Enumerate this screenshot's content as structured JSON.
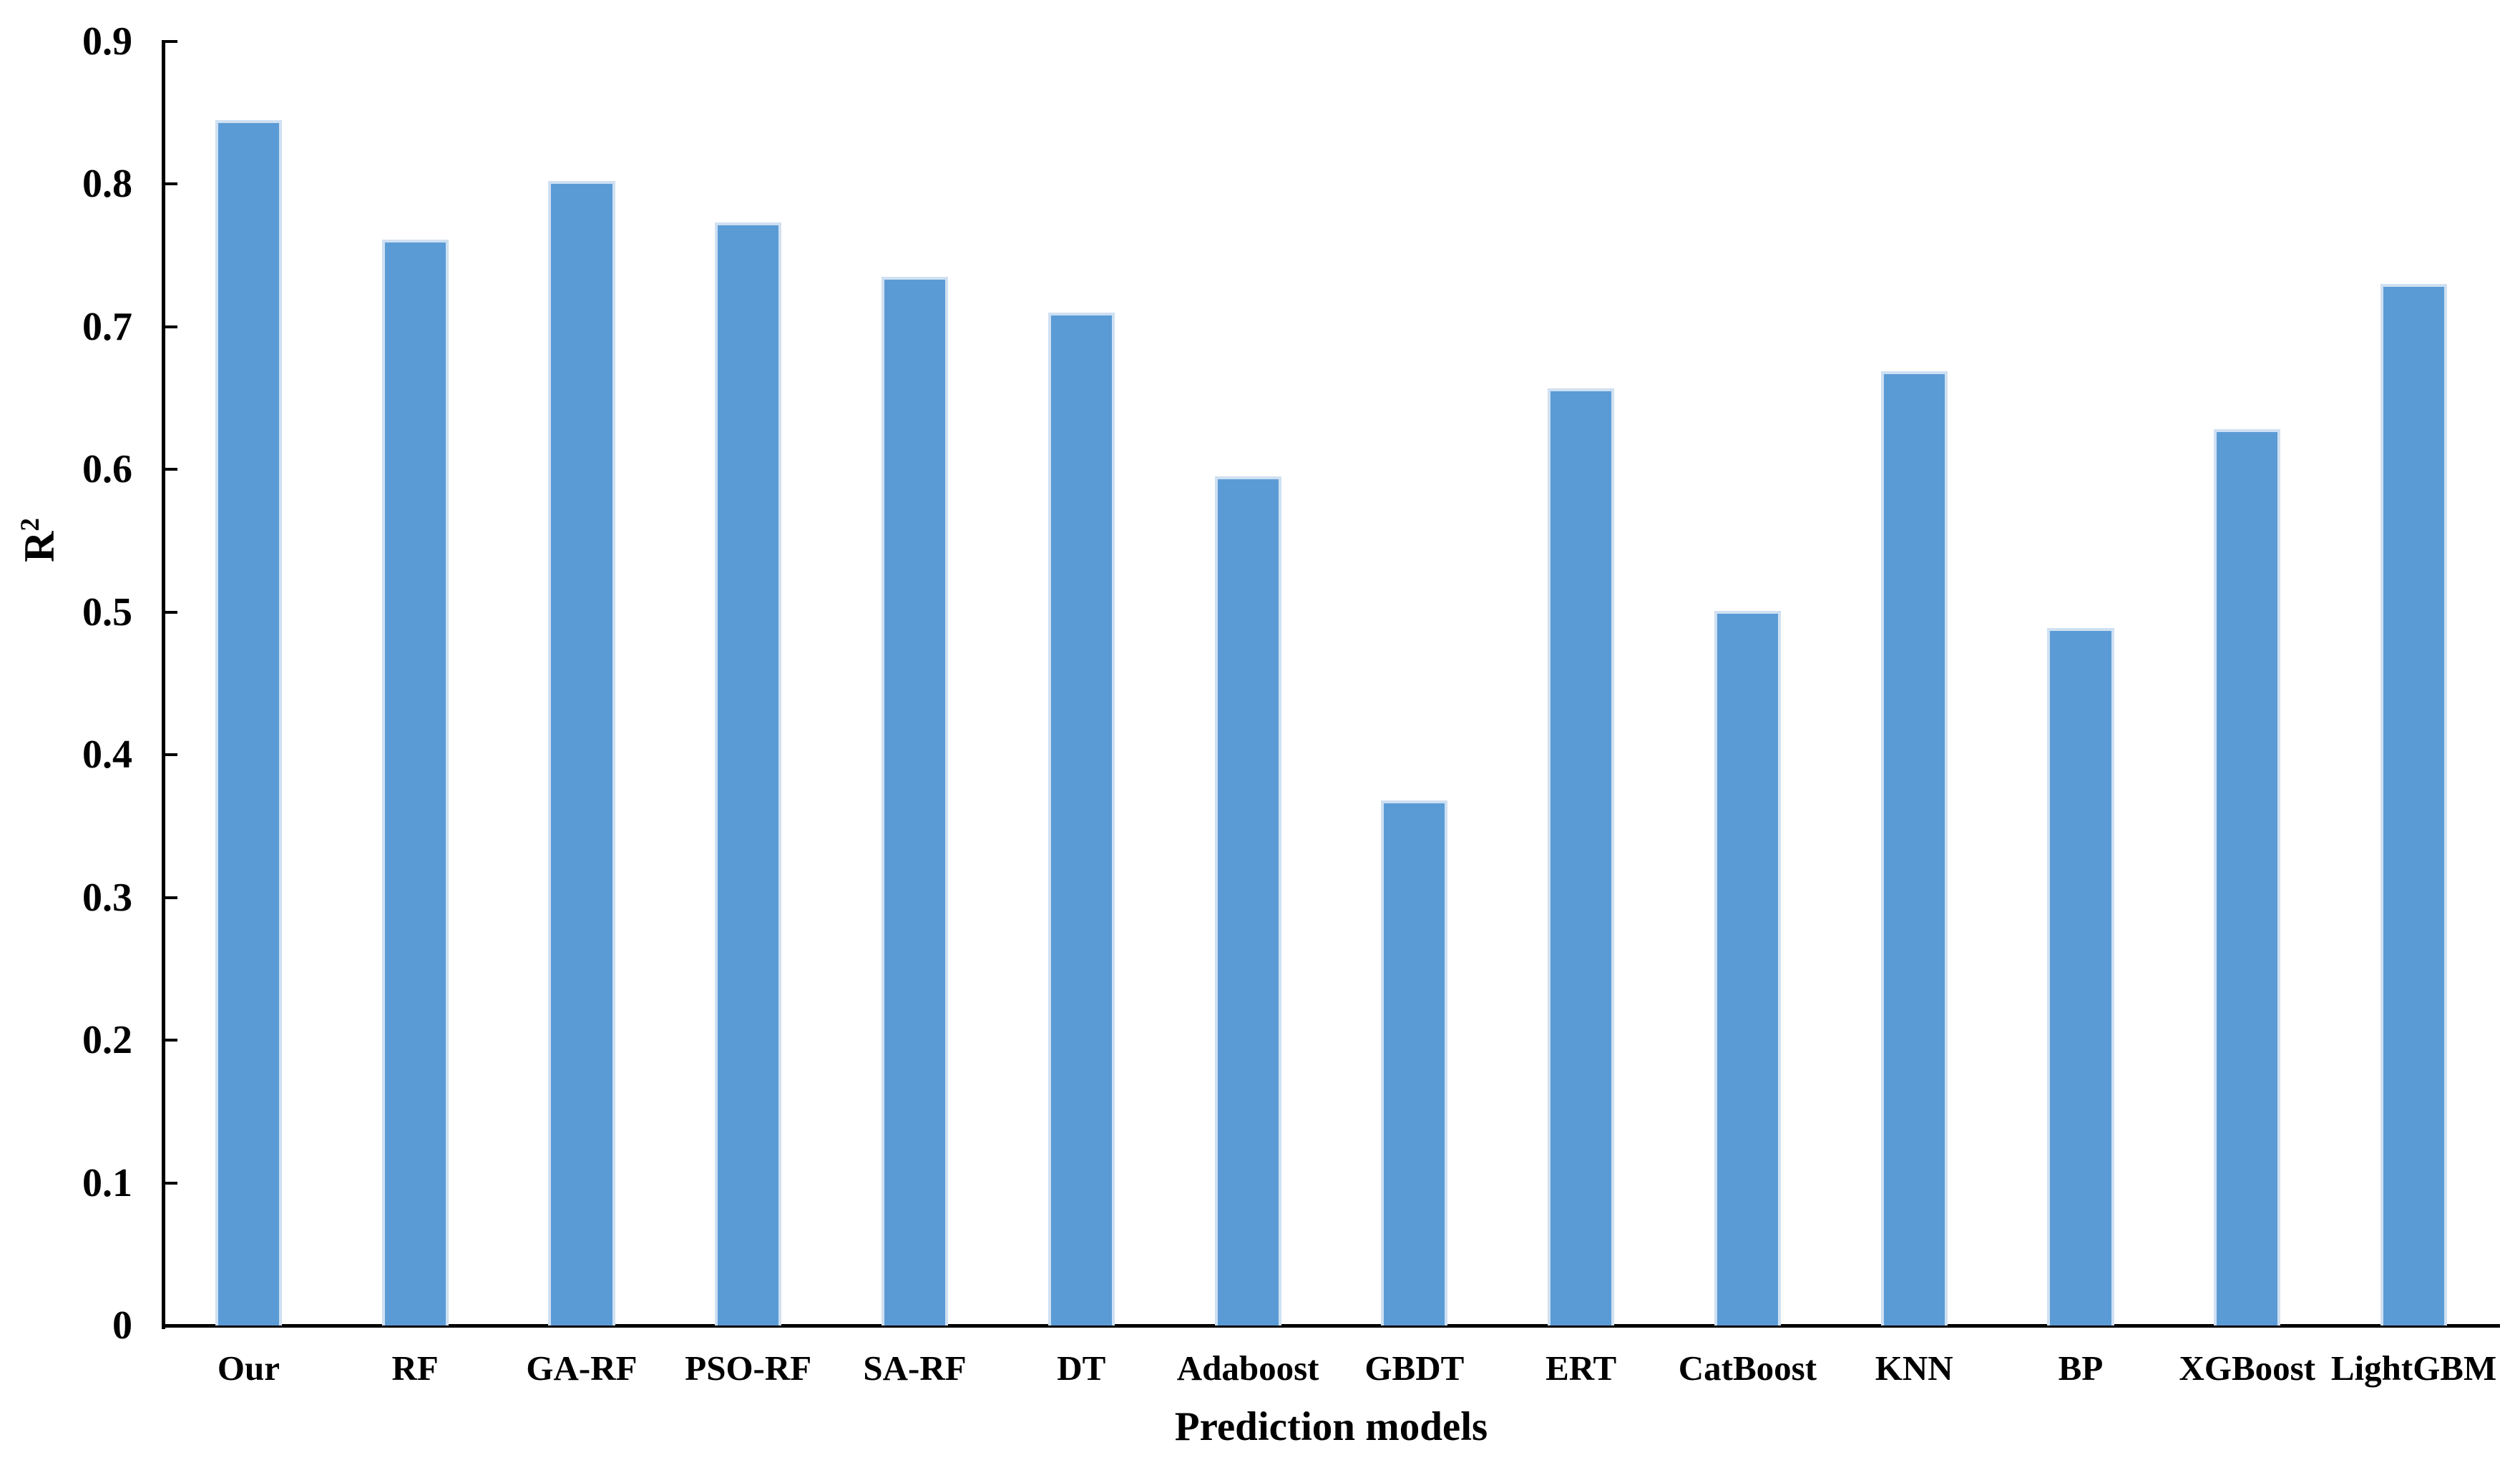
{
  "chart_data": {
    "type": "bar",
    "title": "",
    "xlabel": "Prediction models",
    "ylabel": "R2",
    "ylabel_base": "R",
    "ylabel_superscript": "2",
    "categories": [
      "Our",
      "RF",
      "GA-RF",
      "PSO-RF",
      "SA-RF",
      "DT",
      "Adaboost",
      "GBDT",
      "ERT",
      "CatBoost",
      "KNN",
      "BP",
      "XGBoost",
      "LightGBM"
    ],
    "values": [
      0.845,
      0.761,
      0.802,
      0.773,
      0.735,
      0.71,
      0.595,
      0.368,
      0.657,
      0.501,
      0.669,
      0.489,
      0.628,
      0.73
    ],
    "ylim": [
      0,
      0.9
    ],
    "yticks": [
      0,
      0.1,
      0.2,
      0.3,
      0.4,
      0.5,
      0.6,
      0.7,
      0.8,
      0.9
    ],
    "ytick_labels": [
      "0",
      "0.1",
      "0.2",
      "0.3",
      "0.4",
      "0.5",
      "0.6",
      "0.7",
      "0.8",
      "0.9"
    ],
    "grid": false,
    "legend": "none",
    "bar_color": "#5B9BD5",
    "bar_border_color": "#CFE0F2",
    "axis_color": "#000000",
    "background_color": "#FFFFFF",
    "series_count": 1,
    "bar_width_fraction": 0.4
  }
}
